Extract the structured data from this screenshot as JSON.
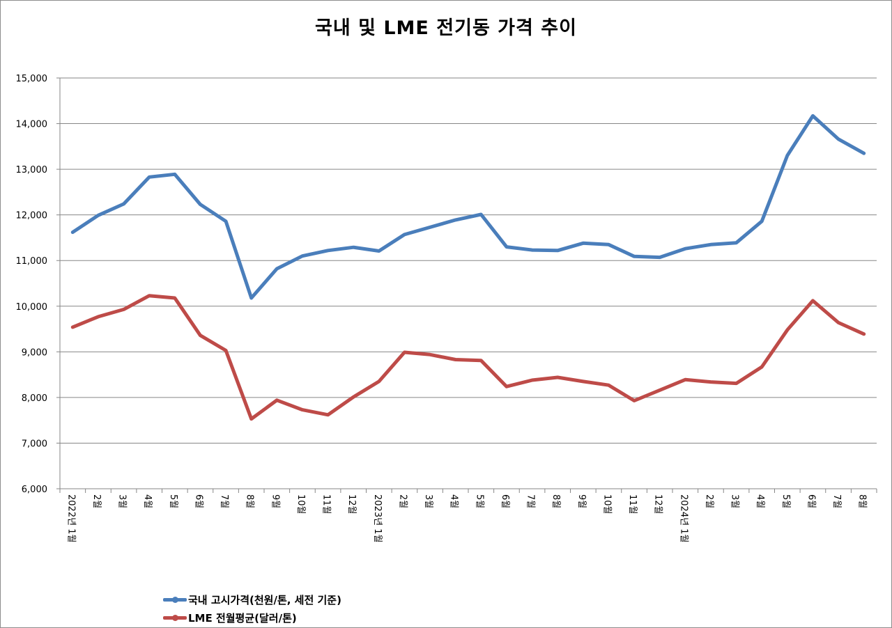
{
  "colors": {
    "series1": "#4a7ebb",
    "series2": "#be4b48",
    "grid": "#868686",
    "axis": "#868686"
  },
  "chart_data": {
    "type": "line",
    "title": "국내 및 LME 전기동 가격 추이",
    "xlabel": "",
    "ylabel": "",
    "ylim": [
      6000,
      15000
    ],
    "yticks": [
      "6,000",
      "7,000",
      "8,000",
      "9,000",
      "10,000",
      "11,000",
      "12,000",
      "13,000",
      "14,000",
      "15,000"
    ],
    "grid": true,
    "legend_position": "bottom-left",
    "categories": [
      "2022년 1월",
      "2월",
      "3월",
      "4월",
      "5월",
      "6월",
      "7월",
      "8월",
      "9월",
      "10월",
      "11월",
      "12월",
      "2023년 1월",
      "2월",
      "3월",
      "4월",
      "5월",
      "6월",
      "7월",
      "8월",
      "9월",
      "10월",
      "11월",
      "12월",
      "2024년 1월",
      "2월",
      "3월",
      "4월",
      "5월",
      "6월",
      "7월",
      "8월"
    ],
    "series": [
      {
        "name": "국내 고시가격(천원/톤, 세전 기준)",
        "values": [
          11620,
          11990,
          12240,
          12830,
          12890,
          12230,
          11860,
          10180,
          10820,
          11100,
          11220,
          11290,
          11210,
          11570,
          11730,
          11890,
          12010,
          11300,
          11230,
          11220,
          11380,
          11350,
          11090,
          11070,
          11260,
          11350,
          11390,
          11860,
          13300,
          14170,
          13660,
          13350
        ]
      },
      {
        "name": "LME 전월평균(달러/톤)",
        "values": [
          9540,
          9770,
          9930,
          10230,
          10180,
          9360,
          9030,
          7530,
          7940,
          7730,
          7620,
          8010,
          8350,
          8990,
          8940,
          8830,
          8810,
          8240,
          8380,
          8440,
          8350,
          8270,
          7930,
          8160,
          8390,
          8340,
          8310,
          8670,
          9480,
          10120,
          9640,
          9390
        ]
      }
    ]
  }
}
